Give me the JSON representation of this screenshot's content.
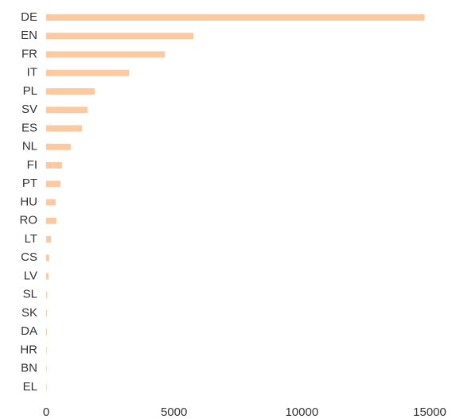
{
  "chart_data": {
    "type": "barh",
    "categories": [
      "DE",
      "EN",
      "FR",
      "IT",
      "PL",
      "SV",
      "ES",
      "NL",
      "FI",
      "PT",
      "HU",
      "RO",
      "LT",
      "CS",
      "LV",
      "SL",
      "SK",
      "DA",
      "HR",
      "BN",
      "EL"
    ],
    "values": [
      14800,
      5760,
      4640,
      3240,
      1900,
      1620,
      1400,
      960,
      620,
      560,
      370,
      400,
      190,
      120,
      90,
      40,
      30,
      30,
      25,
      20,
      20
    ],
    "color": "#fdc9a0",
    "xlim": [
      0,
      15000
    ],
    "xticks": [
      0,
      5000,
      10000,
      15000
    ],
    "grid": false
  }
}
